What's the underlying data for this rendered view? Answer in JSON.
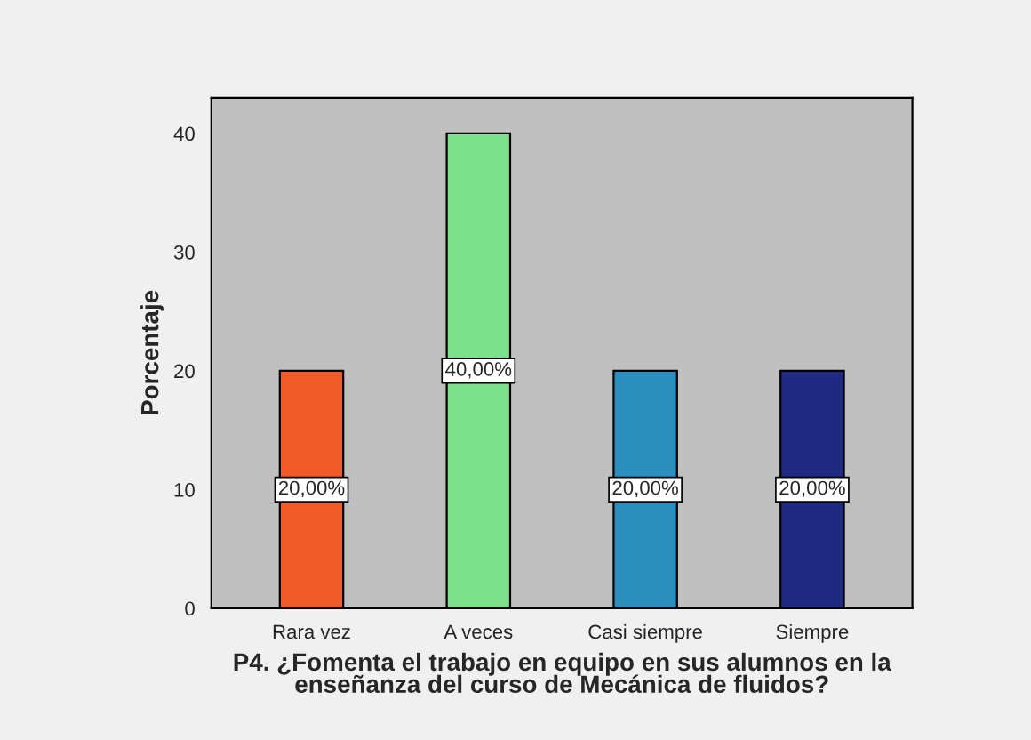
{
  "chart_data": {
    "type": "bar",
    "categories": [
      "Rara vez",
      "A veces",
      "Casi siempre",
      "Siempre"
    ],
    "values": [
      20,
      40,
      20,
      20
    ],
    "colors": [
      "#f05a28",
      "#7de08a",
      "#2a8fbf",
      "#1f2a80"
    ],
    "value_labels": [
      "20,00%",
      "40,00%",
      "20,00%",
      "20,00%"
    ],
    "ylabel": "Porcentaje",
    "xlabel": "P4. ¿Fomenta el trabajo en equipo en sus alumnos en la\nenseñanza del curso de Mecánica de fluidos?",
    "ylim": [
      0,
      43
    ],
    "yticks": [
      0,
      10,
      20,
      30,
      40
    ],
    "grid": false
  }
}
